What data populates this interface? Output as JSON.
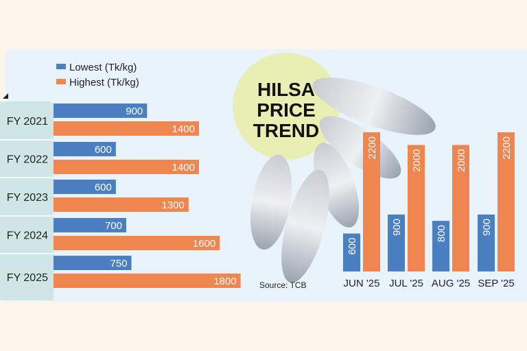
{
  "chart_data": [
    {
      "type": "bar",
      "orientation": "horizontal",
      "categories": [
        "FY 2021",
        "FY 2022",
        "FY 2023",
        "FY 2024",
        "FY 2025"
      ],
      "series": [
        {
          "name": "Lowest (Tk/kg)",
          "values": [
            900,
            600,
            600,
            700,
            750
          ],
          "color": "#4a7fc1"
        },
        {
          "name": "Highest (Tk/kg)",
          "values": [
            1400,
            1400,
            1300,
            1600,
            1800
          ],
          "color": "#ef8650"
        }
      ],
      "legend": "top-left"
    },
    {
      "type": "bar",
      "orientation": "vertical",
      "categories": [
        "JUN '25",
        "JUL '25",
        "AUG '25",
        "SEP '25"
      ],
      "series": [
        {
          "name": "Lowest (Tk/kg)",
          "values": [
            600,
            900,
            800,
            900
          ],
          "color": "#4a7fc1"
        },
        {
          "name": "Highest (Tk/kg)",
          "values": [
            2200,
            2000,
            2000,
            2200
          ],
          "color": "#ef8650"
        }
      ]
    }
  ],
  "title": [
    "HILSA",
    "PRICE",
    "TREND"
  ],
  "source": "Source: TCB",
  "colors": {
    "label_column": "#cfe5e6",
    "title_circle": "#e9efb2",
    "panel": "#e9f3fb",
    "background": "#fdf4ea"
  }
}
